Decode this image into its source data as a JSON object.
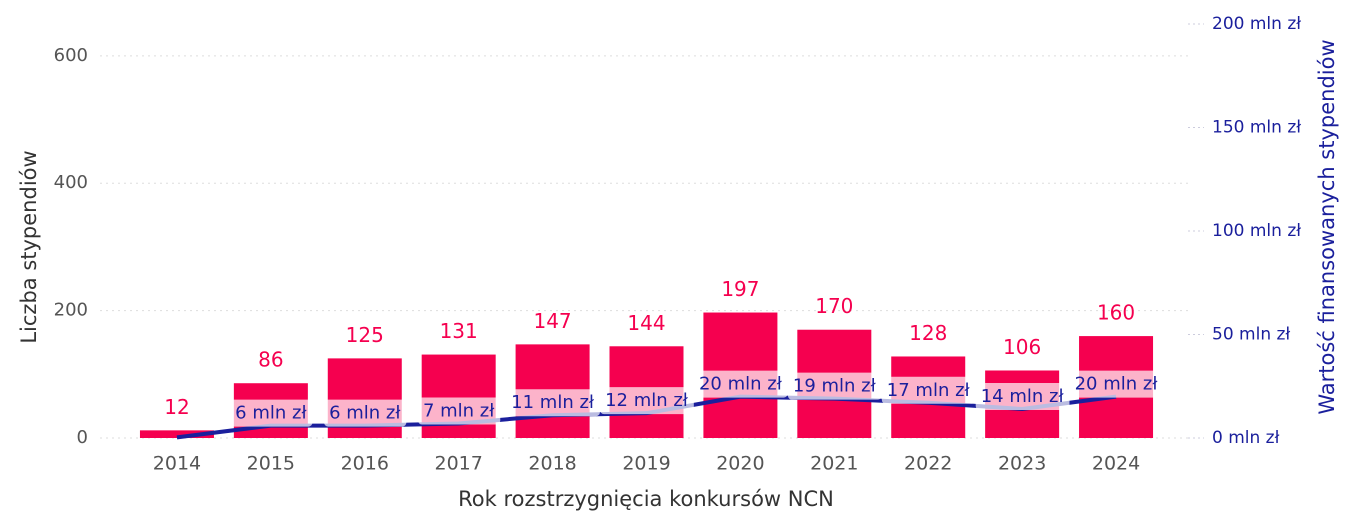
{
  "chart_data": {
    "type": "bar",
    "xlabel": "Rok rozstrzygnięcia konkursów NCN",
    "ylabel": "Liczba stypendiów",
    "y2label": "Wartość finansowanych stypendiów",
    "categories": [
      "2014",
      "2015",
      "2016",
      "2017",
      "2018",
      "2019",
      "2020",
      "2021",
      "2022",
      "2023",
      "2024"
    ],
    "series": [
      {
        "type": "bar",
        "color": "#f5004f",
        "values": [
          12,
          86,
          125,
          131,
          147,
          144,
          197,
          170,
          128,
          106,
          160
        ]
      },
      {
        "type": "line",
        "axis": "y2",
        "color": "#1a1f9c",
        "values": [
          0.3,
          6,
          6,
          7,
          11,
          12,
          20,
          19,
          17,
          14,
          20
        ],
        "value_labels": [
          null,
          "6 mln zł",
          "6 mln zł",
          "7 mln zł",
          "11 mln zł",
          "12 mln zł",
          "20 mln zł",
          "19 mln zł",
          "17 mln zł",
          "14 mln zł",
          "20 mln zł"
        ]
      }
    ],
    "ylim": [
      0,
      650
    ],
    "yticks": [
      0,
      200,
      400,
      600
    ],
    "y2lim": [
      0,
      200
    ],
    "y2ticks": [
      {
        "value": 0,
        "label": "0 mln zł"
      },
      {
        "value": 50,
        "label": "50 mln zł"
      },
      {
        "value": 100,
        "label": "100 mln zł"
      },
      {
        "value": 150,
        "label": "150 mln zł"
      },
      {
        "value": 200,
        "label": "200 mln zł"
      }
    ],
    "grid": true
  }
}
